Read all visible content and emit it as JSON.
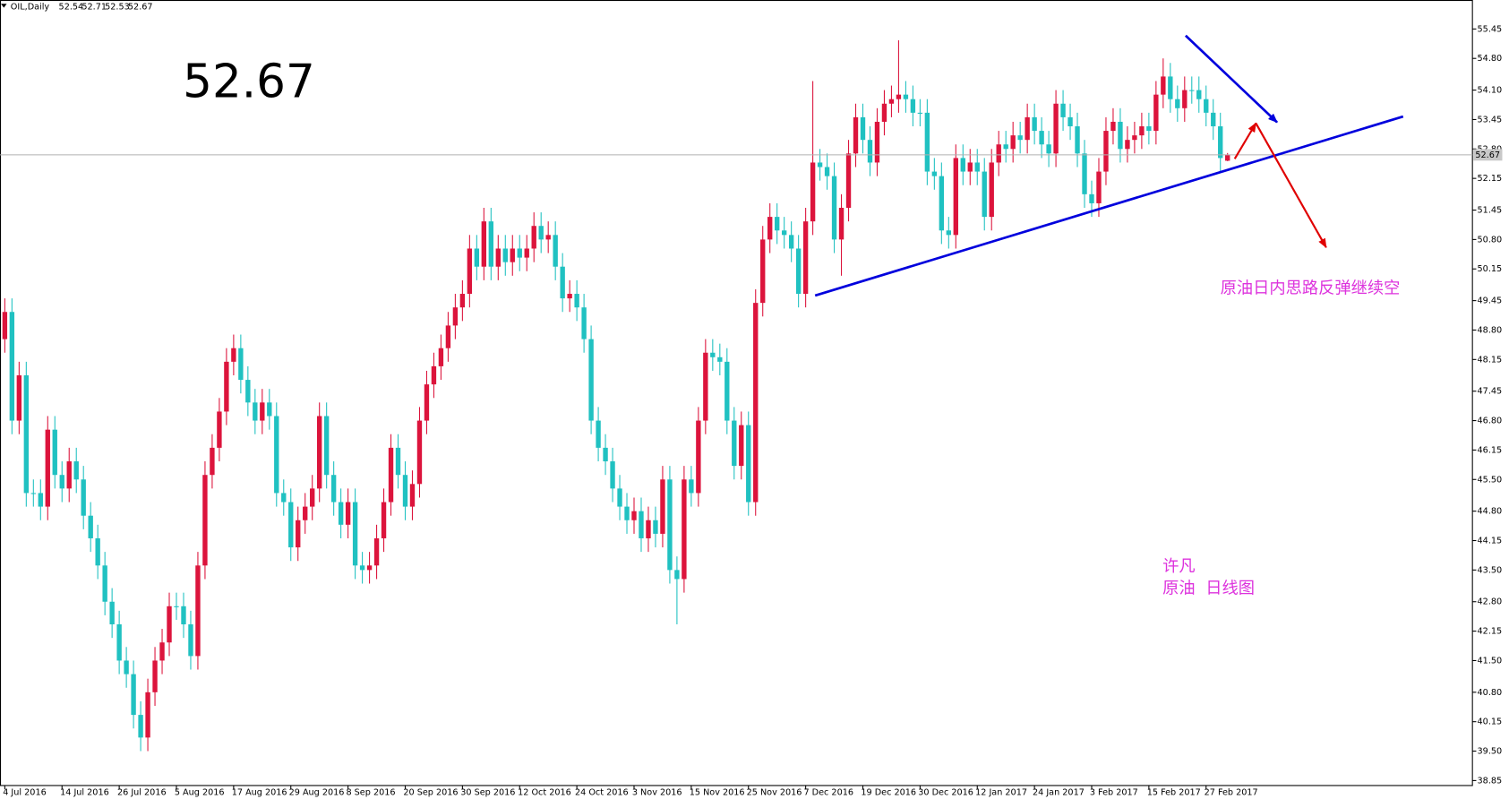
{
  "chart_data": {
    "type": "candlestick",
    "symbol": "OIL,Daily",
    "ylim": [
      38.74,
      56.09
    ],
    "yticks": [
      {
        "value": 55.45,
        "label": "55.45"
      },
      {
        "value": 54.8,
        "label": "54.80"
      },
      {
        "value": 54.1,
        "label": "54.10"
      },
      53.45,
      {
        "value": 52.8,
        "label": "52.80"
      },
      52.15,
      51.45,
      {
        "value": 50.8,
        "label": "50.80"
      },
      50.15,
      49.45,
      {
        "value": 48.8,
        "label": "48.80"
      },
      48.15,
      47.45,
      {
        "value": 46.8,
        "label": "46.80"
      },
      46.15,
      {
        "value": 45.5,
        "label": "45.50"
      },
      {
        "value": 44.8,
        "label": "44.80"
      },
      44.15,
      {
        "value": 43.5,
        "label": "43.50"
      },
      {
        "value": 42.8,
        "label": "42.80"
      },
      42.15,
      {
        "value": 41.5,
        "label": "41.50"
      },
      {
        "value": 40.8,
        "label": "40.80"
      },
      40.15,
      {
        "value": 39.5,
        "label": "39.50"
      },
      38.85
    ],
    "up_color": "#dc143c",
    "down_color": "#20c1c1",
    "categories": [
      "4 Jul 2016",
      null,
      null,
      null,
      null,
      null,
      null,
      null,
      "14 Jul 2016",
      null,
      null,
      null,
      null,
      null,
      null,
      null,
      "26 Jul 2016",
      null,
      null,
      null,
      null,
      null,
      null,
      null,
      "5 Aug 2016",
      null,
      null,
      null,
      null,
      null,
      null,
      null,
      "17 Aug 2016",
      null,
      null,
      null,
      null,
      null,
      null,
      null,
      "29 Aug 2016",
      null,
      null,
      null,
      null,
      null,
      null,
      null,
      "8 Sep 2016",
      null,
      null,
      null,
      null,
      null,
      null,
      null,
      "20 Sep 2016",
      null,
      null,
      null,
      null,
      null,
      null,
      null,
      "30 Sep 2016",
      null,
      null,
      null,
      null,
      null,
      null,
      null,
      "12 Oct 2016",
      null,
      null,
      null,
      null,
      null,
      null,
      null,
      "24 Oct 2016",
      null,
      null,
      null,
      null,
      null,
      null,
      null,
      "3 Nov 2016",
      null,
      null,
      null,
      null,
      null,
      null,
      null,
      "15 Nov 2016",
      null,
      null,
      null,
      null,
      null,
      null,
      null,
      "25 Nov 2016",
      null,
      null,
      null,
      null,
      null,
      null,
      null,
      "7 Dec 2016",
      null,
      null,
      null,
      null,
      null,
      null,
      null,
      "19 Dec 2016",
      null,
      null,
      null,
      null,
      null,
      null,
      null,
      "30 Dec 2016",
      null,
      null,
      null,
      null,
      null,
      null,
      null,
      "12 Jan 2017",
      null,
      null,
      null,
      null,
      null,
      null,
      null,
      "24 Jan 2017",
      null,
      null,
      null,
      null,
      null,
      null,
      null,
      "3 Feb 2017",
      null,
      null,
      null,
      null,
      null,
      null,
      null,
      "15 Feb 2017",
      null,
      null,
      null,
      null,
      null,
      null,
      null,
      "27 Feb 2017",
      null,
      null,
      null
    ],
    "candles": [
      [
        48.6,
        49.5,
        48.3,
        49.2
      ],
      [
        49.2,
        49.5,
        46.5,
        46.8
      ],
      [
        46.8,
        48.1,
        46.5,
        47.8
      ],
      [
        47.8,
        48.1,
        44.9,
        45.2
      ],
      [
        45.2,
        45.5,
        44.9,
        45.2
      ],
      [
        45.2,
        45.5,
        44.6,
        44.9
      ],
      [
        44.9,
        46.9,
        44.6,
        46.6
      ],
      [
        46.6,
        46.9,
        45.3,
        45.6
      ],
      [
        45.6,
        45.9,
        45.0,
        45.3
      ],
      [
        45.3,
        46.2,
        45.0,
        45.9
      ],
      [
        45.9,
        46.2,
        45.2,
        45.5
      ],
      [
        45.5,
        45.8,
        44.4,
        44.7
      ],
      [
        44.7,
        45.0,
        43.9,
        44.2
      ],
      [
        44.2,
        44.5,
        43.3,
        43.6
      ],
      [
        43.6,
        43.9,
        42.5,
        42.8
      ],
      [
        42.8,
        43.1,
        42.0,
        42.3
      ],
      [
        42.3,
        42.6,
        41.2,
        41.5
      ],
      [
        41.5,
        41.8,
        40.9,
        41.2
      ],
      [
        41.2,
        41.5,
        40.0,
        40.3
      ],
      [
        40.3,
        40.6,
        39.5,
        39.8
      ],
      [
        39.8,
        41.1,
        39.5,
        40.8
      ],
      [
        40.8,
        41.8,
        40.5,
        41.5
      ],
      [
        41.5,
        42.2,
        41.2,
        41.9
      ],
      [
        41.9,
        43.0,
        41.6,
        42.7
      ],
      [
        42.7,
        43.0,
        42.4,
        42.7
      ],
      [
        42.7,
        43.0,
        42.0,
        42.3
      ],
      [
        42.3,
        42.6,
        41.3,
        41.6
      ],
      [
        41.6,
        43.9,
        41.3,
        43.6
      ],
      [
        43.6,
        45.9,
        43.3,
        45.6
      ],
      [
        45.6,
        46.5,
        45.3,
        46.2
      ],
      [
        46.2,
        47.3,
        45.9,
        47.0
      ],
      [
        47.0,
        48.4,
        46.7,
        48.1
      ],
      [
        48.1,
        48.7,
        47.8,
        48.4
      ],
      [
        48.4,
        48.7,
        47.4,
        47.7
      ],
      [
        47.7,
        48.0,
        46.9,
        47.2
      ],
      [
        47.2,
        47.5,
        46.5,
        46.8
      ],
      [
        46.8,
        47.5,
        46.5,
        47.2
      ],
      [
        47.2,
        47.5,
        46.6,
        46.9
      ],
      [
        46.9,
        47.2,
        44.9,
        45.2
      ],
      [
        45.2,
        45.5,
        44.7,
        45.0
      ],
      [
        45.0,
        45.3,
        43.7,
        44.0
      ],
      [
        44.0,
        44.9,
        43.7,
        44.6
      ],
      [
        44.6,
        45.2,
        44.3,
        44.9
      ],
      [
        44.9,
        45.6,
        44.6,
        45.3
      ],
      [
        45.3,
        47.2,
        45.0,
        46.9
      ],
      [
        46.9,
        47.2,
        45.3,
        45.6
      ],
      [
        45.6,
        45.9,
        44.7,
        45.0
      ],
      [
        45.0,
        45.3,
        44.2,
        44.5
      ],
      [
        44.5,
        45.3,
        44.2,
        45.0
      ],
      [
        45.0,
        45.3,
        43.3,
        43.6
      ],
      [
        43.6,
        43.9,
        43.2,
        43.5
      ],
      [
        43.5,
        43.9,
        43.2,
        43.6
      ],
      [
        43.6,
        44.5,
        43.3,
        44.2
      ],
      [
        44.2,
        45.3,
        43.9,
        45.0
      ],
      [
        45.0,
        46.5,
        44.7,
        46.2
      ],
      [
        46.2,
        46.5,
        45.3,
        45.6
      ],
      [
        45.6,
        45.9,
        44.6,
        44.9
      ],
      [
        44.9,
        45.7,
        44.6,
        45.4
      ],
      [
        45.4,
        47.1,
        45.1,
        46.8
      ],
      [
        46.8,
        47.9,
        46.5,
        47.6
      ],
      [
        47.6,
        48.3,
        47.3,
        48.0
      ],
      [
        48.0,
        48.7,
        47.7,
        48.4
      ],
      [
        48.4,
        49.2,
        48.1,
        48.9
      ],
      [
        48.9,
        49.6,
        48.6,
        49.3
      ],
      [
        49.3,
        49.9,
        49.0,
        49.6
      ],
      [
        49.6,
        50.9,
        49.3,
        50.6
      ],
      [
        50.6,
        50.9,
        49.9,
        50.2
      ],
      [
        50.2,
        51.5,
        49.9,
        51.2
      ],
      [
        51.2,
        51.5,
        49.9,
        50.2
      ],
      [
        50.2,
        50.9,
        49.9,
        50.6
      ],
      [
        50.6,
        50.9,
        50.0,
        50.3
      ],
      [
        50.3,
        50.9,
        50.0,
        50.6
      ],
      [
        50.6,
        50.9,
        50.1,
        50.4
      ],
      [
        50.4,
        50.9,
        50.1,
        50.6
      ],
      [
        50.6,
        51.4,
        50.3,
        51.1
      ],
      [
        51.1,
        51.4,
        50.5,
        50.8
      ],
      [
        50.8,
        51.2,
        50.5,
        50.9
      ],
      [
        50.9,
        51.2,
        49.9,
        50.2
      ],
      [
        50.2,
        50.5,
        49.2,
        49.5
      ],
      [
        49.5,
        49.9,
        49.2,
        49.6
      ],
      [
        49.6,
        49.9,
        49.0,
        49.3
      ],
      [
        49.3,
        49.6,
        48.3,
        48.6
      ],
      [
        48.6,
        48.9,
        46.5,
        46.8
      ],
      [
        46.8,
        47.1,
        45.9,
        46.2
      ],
      [
        46.2,
        46.5,
        45.6,
        45.9
      ],
      [
        45.9,
        46.2,
        45.0,
        45.3
      ],
      [
        45.3,
        45.6,
        44.6,
        44.9
      ],
      [
        44.9,
        45.2,
        44.3,
        44.6
      ],
      [
        44.6,
        45.1,
        44.3,
        44.8
      ],
      [
        44.8,
        45.1,
        43.9,
        44.2
      ],
      [
        44.2,
        44.9,
        43.9,
        44.6
      ],
      [
        44.6,
        44.9,
        44.0,
        44.3
      ],
      [
        44.3,
        45.8,
        44.0,
        45.5
      ],
      [
        45.5,
        45.8,
        43.2,
        43.5
      ],
      [
        43.5,
        43.8,
        42.3,
        43.3
      ],
      [
        43.3,
        45.8,
        43.0,
        45.5
      ],
      [
        45.5,
        45.8,
        44.9,
        45.2
      ],
      [
        45.2,
        47.1,
        44.9,
        46.8
      ],
      [
        46.8,
        48.6,
        46.5,
        48.3
      ],
      [
        48.3,
        48.6,
        47.9,
        48.2
      ],
      [
        48.2,
        48.5,
        47.8,
        48.1
      ],
      [
        48.1,
        48.4,
        46.5,
        46.8
      ],
      [
        46.8,
        47.1,
        45.5,
        45.8
      ],
      [
        45.8,
        47.0,
        45.5,
        46.7
      ],
      [
        46.7,
        47.0,
        44.7,
        45.0
      ],
      [
        45.0,
        49.7,
        44.7,
        49.4
      ],
      [
        49.4,
        51.1,
        49.1,
        50.8
      ],
      [
        50.8,
        51.6,
        50.5,
        51.3
      ],
      [
        51.3,
        51.6,
        50.7,
        51.0
      ],
      [
        51.0,
        51.3,
        50.6,
        50.9
      ],
      [
        50.9,
        51.2,
        50.3,
        50.6
      ],
      [
        50.6,
        50.9,
        49.3,
        49.6
      ],
      [
        49.6,
        51.5,
        49.3,
        51.2
      ],
      [
        51.2,
        54.3,
        50.9,
        52.5
      ],
      [
        52.5,
        52.8,
        52.1,
        52.4
      ],
      [
        52.4,
        52.7,
        51.9,
        52.2
      ],
      [
        52.2,
        52.5,
        50.5,
        50.8
      ],
      [
        50.8,
        51.8,
        50.0,
        51.5
      ],
      [
        51.5,
        53.0,
        51.2,
        52.7
      ],
      [
        52.7,
        53.8,
        52.4,
        53.5
      ],
      [
        53.5,
        53.8,
        52.7,
        53.0
      ],
      [
        53.0,
        53.3,
        52.2,
        52.5
      ],
      [
        52.5,
        53.7,
        52.2,
        53.4
      ],
      [
        53.4,
        54.1,
        53.1,
        53.8
      ],
      [
        53.8,
        54.2,
        53.5,
        53.9
      ],
      [
        53.9,
        55.2,
        53.6,
        54.0
      ],
      [
        54.0,
        54.3,
        53.6,
        53.9
      ],
      [
        53.9,
        54.2,
        53.3,
        53.6
      ],
      [
        53.6,
        53.9,
        53.3,
        53.6
      ],
      [
        53.6,
        53.9,
        52.0,
        52.3
      ],
      [
        52.3,
        52.6,
        51.9,
        52.2
      ],
      [
        52.2,
        52.5,
        50.7,
        51.0
      ],
      [
        51.0,
        51.3,
        50.6,
        50.9
      ],
      [
        50.9,
        52.9,
        50.6,
        52.6
      ],
      [
        52.6,
        52.9,
        52.0,
        52.3
      ],
      [
        52.3,
        52.8,
        52.0,
        52.5
      ],
      [
        52.5,
        52.8,
        52.0,
        52.3
      ],
      [
        52.3,
        52.6,
        51.0,
        51.3
      ],
      [
        51.3,
        52.8,
        51.0,
        52.5
      ],
      [
        52.5,
        53.2,
        52.2,
        52.9
      ],
      [
        52.9,
        53.2,
        52.5,
        52.8
      ],
      [
        52.8,
        53.4,
        52.5,
        53.1
      ],
      [
        53.1,
        53.4,
        52.7,
        53.0
      ],
      [
        53.0,
        53.8,
        52.7,
        53.5
      ],
      [
        53.5,
        53.8,
        52.9,
        53.2
      ],
      [
        53.2,
        53.5,
        52.6,
        52.9
      ],
      [
        52.9,
        53.2,
        52.4,
        52.7
      ],
      [
        52.7,
        54.1,
        52.4,
        53.8
      ],
      [
        53.8,
        54.1,
        53.2,
        53.5
      ],
      [
        53.5,
        53.8,
        53.0,
        53.3
      ],
      [
        53.3,
        53.6,
        52.4,
        52.7
      ],
      [
        52.7,
        53.0,
        51.5,
        51.8
      ],
      [
        51.8,
        52.1,
        51.3,
        51.6
      ],
      [
        51.6,
        52.6,
        51.3,
        52.3
      ],
      [
        52.3,
        53.5,
        52.0,
        53.2
      ],
      [
        53.2,
        53.7,
        52.9,
        53.4
      ],
      [
        53.4,
        53.7,
        52.5,
        52.8
      ],
      [
        52.8,
        53.3,
        52.5,
        53.0
      ],
      [
        53.0,
        53.4,
        52.7,
        53.1
      ],
      [
        53.1,
        53.6,
        52.8,
        53.3
      ],
      [
        53.3,
        53.6,
        52.9,
        53.2
      ],
      [
        53.2,
        54.3,
        52.9,
        54.0
      ],
      [
        54.0,
        54.8,
        53.7,
        54.4
      ],
      [
        54.4,
        54.7,
        53.6,
        53.9
      ],
      [
        53.9,
        54.2,
        53.4,
        53.7
      ],
      [
        53.7,
        54.4,
        53.4,
        54.1
      ],
      [
        54.1,
        54.4,
        53.8,
        54.1
      ],
      [
        54.1,
        54.4,
        53.6,
        53.9
      ],
      [
        53.9,
        54.2,
        53.3,
        53.6
      ],
      [
        53.6,
        53.9,
        53.0,
        53.3
      ],
      [
        53.3,
        53.6,
        52.3,
        52.6
      ],
      [
        52.54,
        52.71,
        52.53,
        52.67
      ]
    ],
    "annotations": [
      "原油日内思路反弹继续空",
      "许凡",
      "原油  日线图"
    ]
  }
}
